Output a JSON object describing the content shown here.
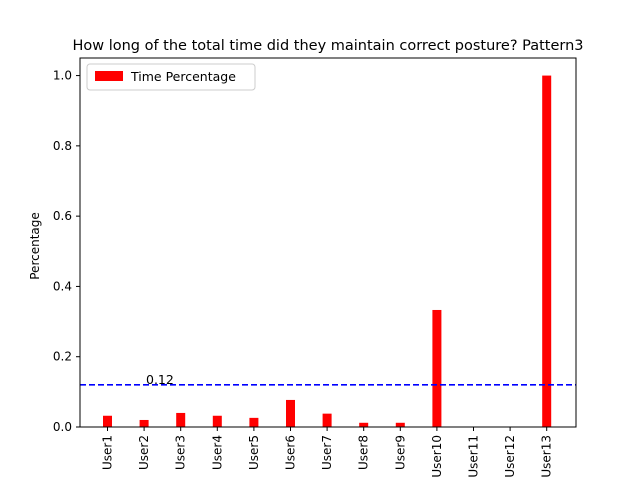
{
  "chart_data": {
    "type": "bar",
    "title": "How long of the total time did they maintain correct posture? Pattern3",
    "xlabel": "",
    "ylabel": "Percentage",
    "categories": [
      "User1",
      "User2",
      "User3",
      "User4",
      "User5",
      "User6",
      "User7",
      "User8",
      "User9",
      "User10",
      "User11",
      "User12",
      "User13"
    ],
    "series": [
      {
        "name": "Time Percentage",
        "color": "#ff0000",
        "values": [
          0.032,
          0.02,
          0.04,
          0.032,
          0.026,
          0.077,
          0.038,
          0.012,
          0.012,
          0.333,
          0.0,
          0.0,
          1.0
        ]
      }
    ],
    "ylim": [
      0,
      1.05
    ],
    "yticks": [
      "0.0",
      "0.2",
      "0.4",
      "0.6",
      "0.8",
      "1.0"
    ],
    "reference_line": {
      "value": 0.12,
      "label": "0.12",
      "color": "#0000ff",
      "style": "dashed"
    },
    "legend_placement": "upper-left",
    "grid": false
  }
}
